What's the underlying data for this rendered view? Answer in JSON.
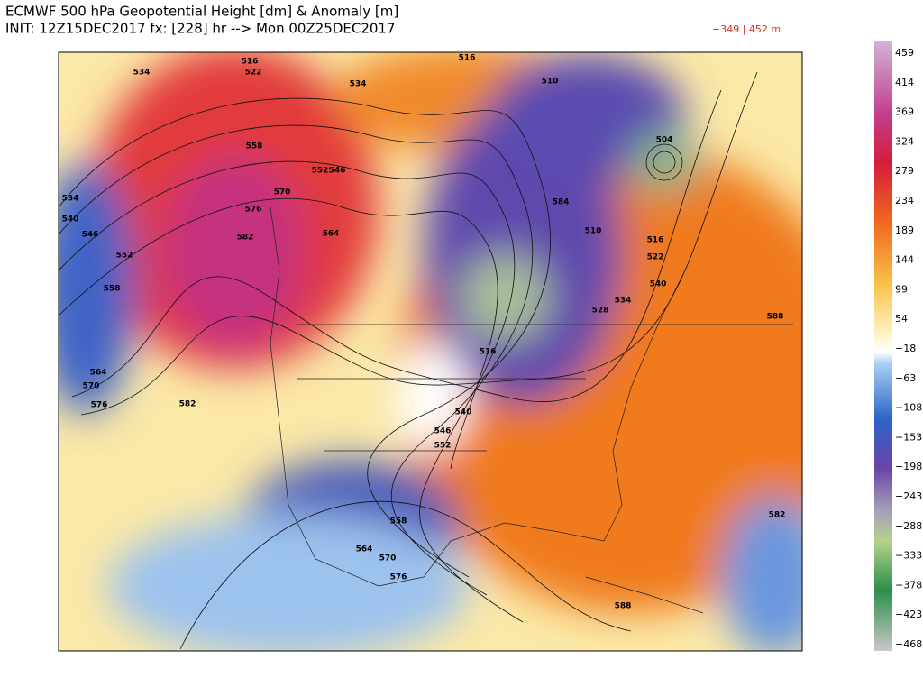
{
  "header": {
    "title_line1": "ECMWF 500 hPa Geopotential Height [dm] & Anomaly [m]",
    "title_line2": "INIT: 12Z15DEC2017 fx: [228] hr --> Mon 00Z25DEC2017",
    "range_note": "−349 | 452 m"
  },
  "colorbar": {
    "labels": [
      "459",
      "414",
      "369",
      "324",
      "279",
      "234",
      "189",
      "144",
      "99",
      "54",
      "−18",
      "−63",
      "−108",
      "−153",
      "−198",
      "−243",
      "−288",
      "−333",
      "−378",
      "−423",
      "−468"
    ]
  },
  "map": {
    "contour_labels": [
      "534",
      "516",
      "522",
      "534",
      "516",
      "510",
      "504",
      "558",
      "552",
      "546",
      "570",
      "576",
      "534",
      "540",
      "546",
      "552",
      "558",
      "582",
      "564",
      "584",
      "510",
      "516",
      "522",
      "540",
      "534",
      "528",
      "588",
      "516",
      "564",
      "570",
      "576",
      "582",
      "540",
      "546",
      "552",
      "558",
      "564",
      "570",
      "576",
      "582",
      "588"
    ]
  }
}
